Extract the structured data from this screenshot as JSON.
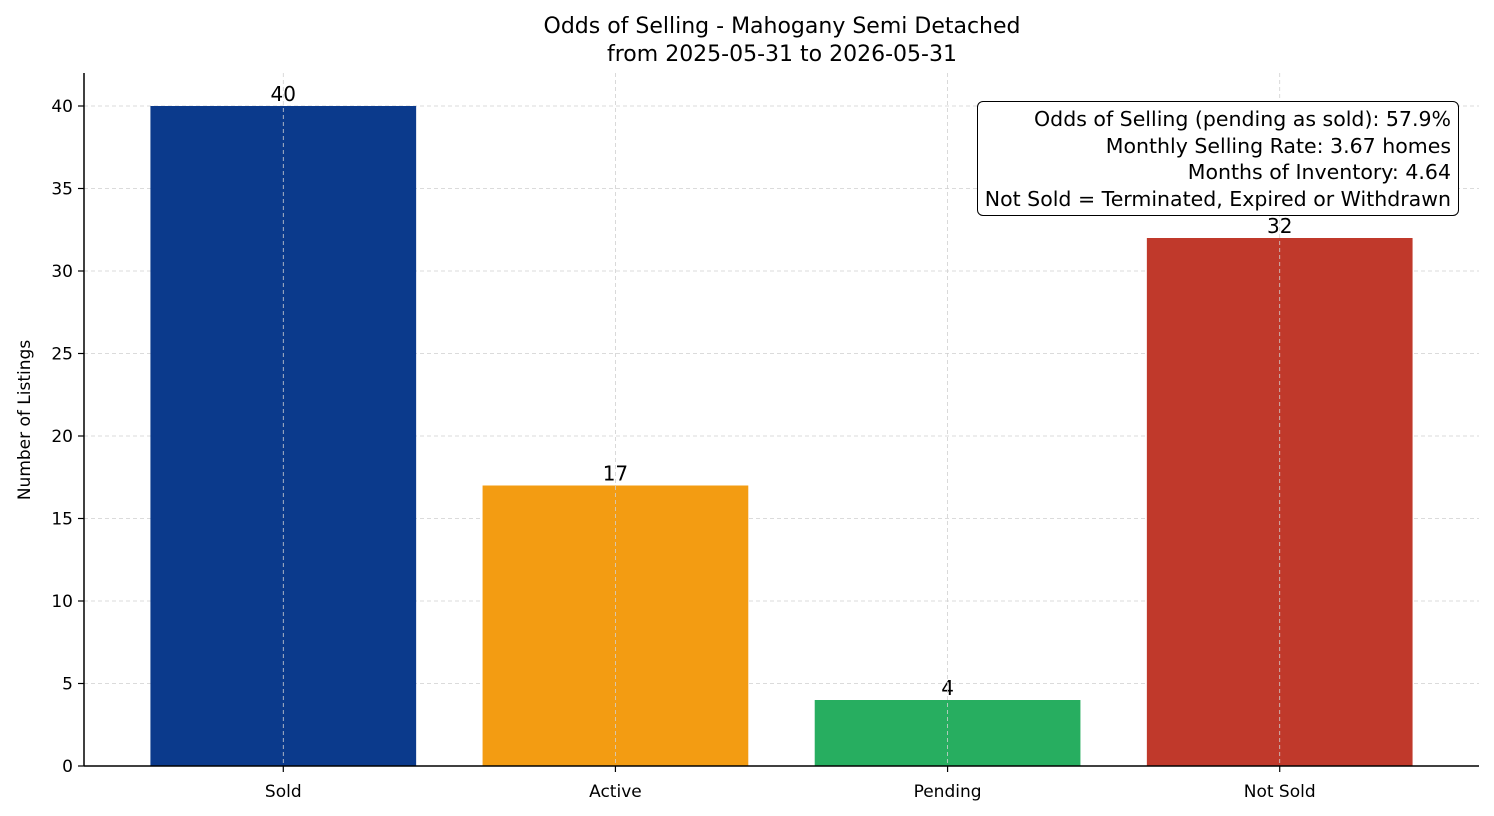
{
  "chart_data": {
    "type": "bar",
    "title": "Odds of Selling - Mahogany Semi Detached",
    "subtitle": "from 2025-05-31 to 2026-05-31",
    "xlabel": "",
    "ylabel": "Number of Listings",
    "categories": [
      "Sold",
      "Active",
      "Pending",
      "Not Sold"
    ],
    "values": [
      40,
      17,
      4,
      32
    ],
    "colors": [
      "#0b3a8c",
      "#f39c12",
      "#27ae60",
      "#c0392b"
    ],
    "ylim": [
      0,
      42
    ],
    "yticks": [
      0,
      5,
      10,
      15,
      20,
      25,
      30,
      35,
      40
    ],
    "grid": true,
    "annotations": [
      "Odds of Selling (pending as sold): 57.9%",
      "Monthly Selling Rate: 3.67 homes",
      "Months of Inventory: 4.64",
      "Not Sold = Terminated, Expired or Withdrawn"
    ],
    "annotation_placement": "top-right"
  }
}
